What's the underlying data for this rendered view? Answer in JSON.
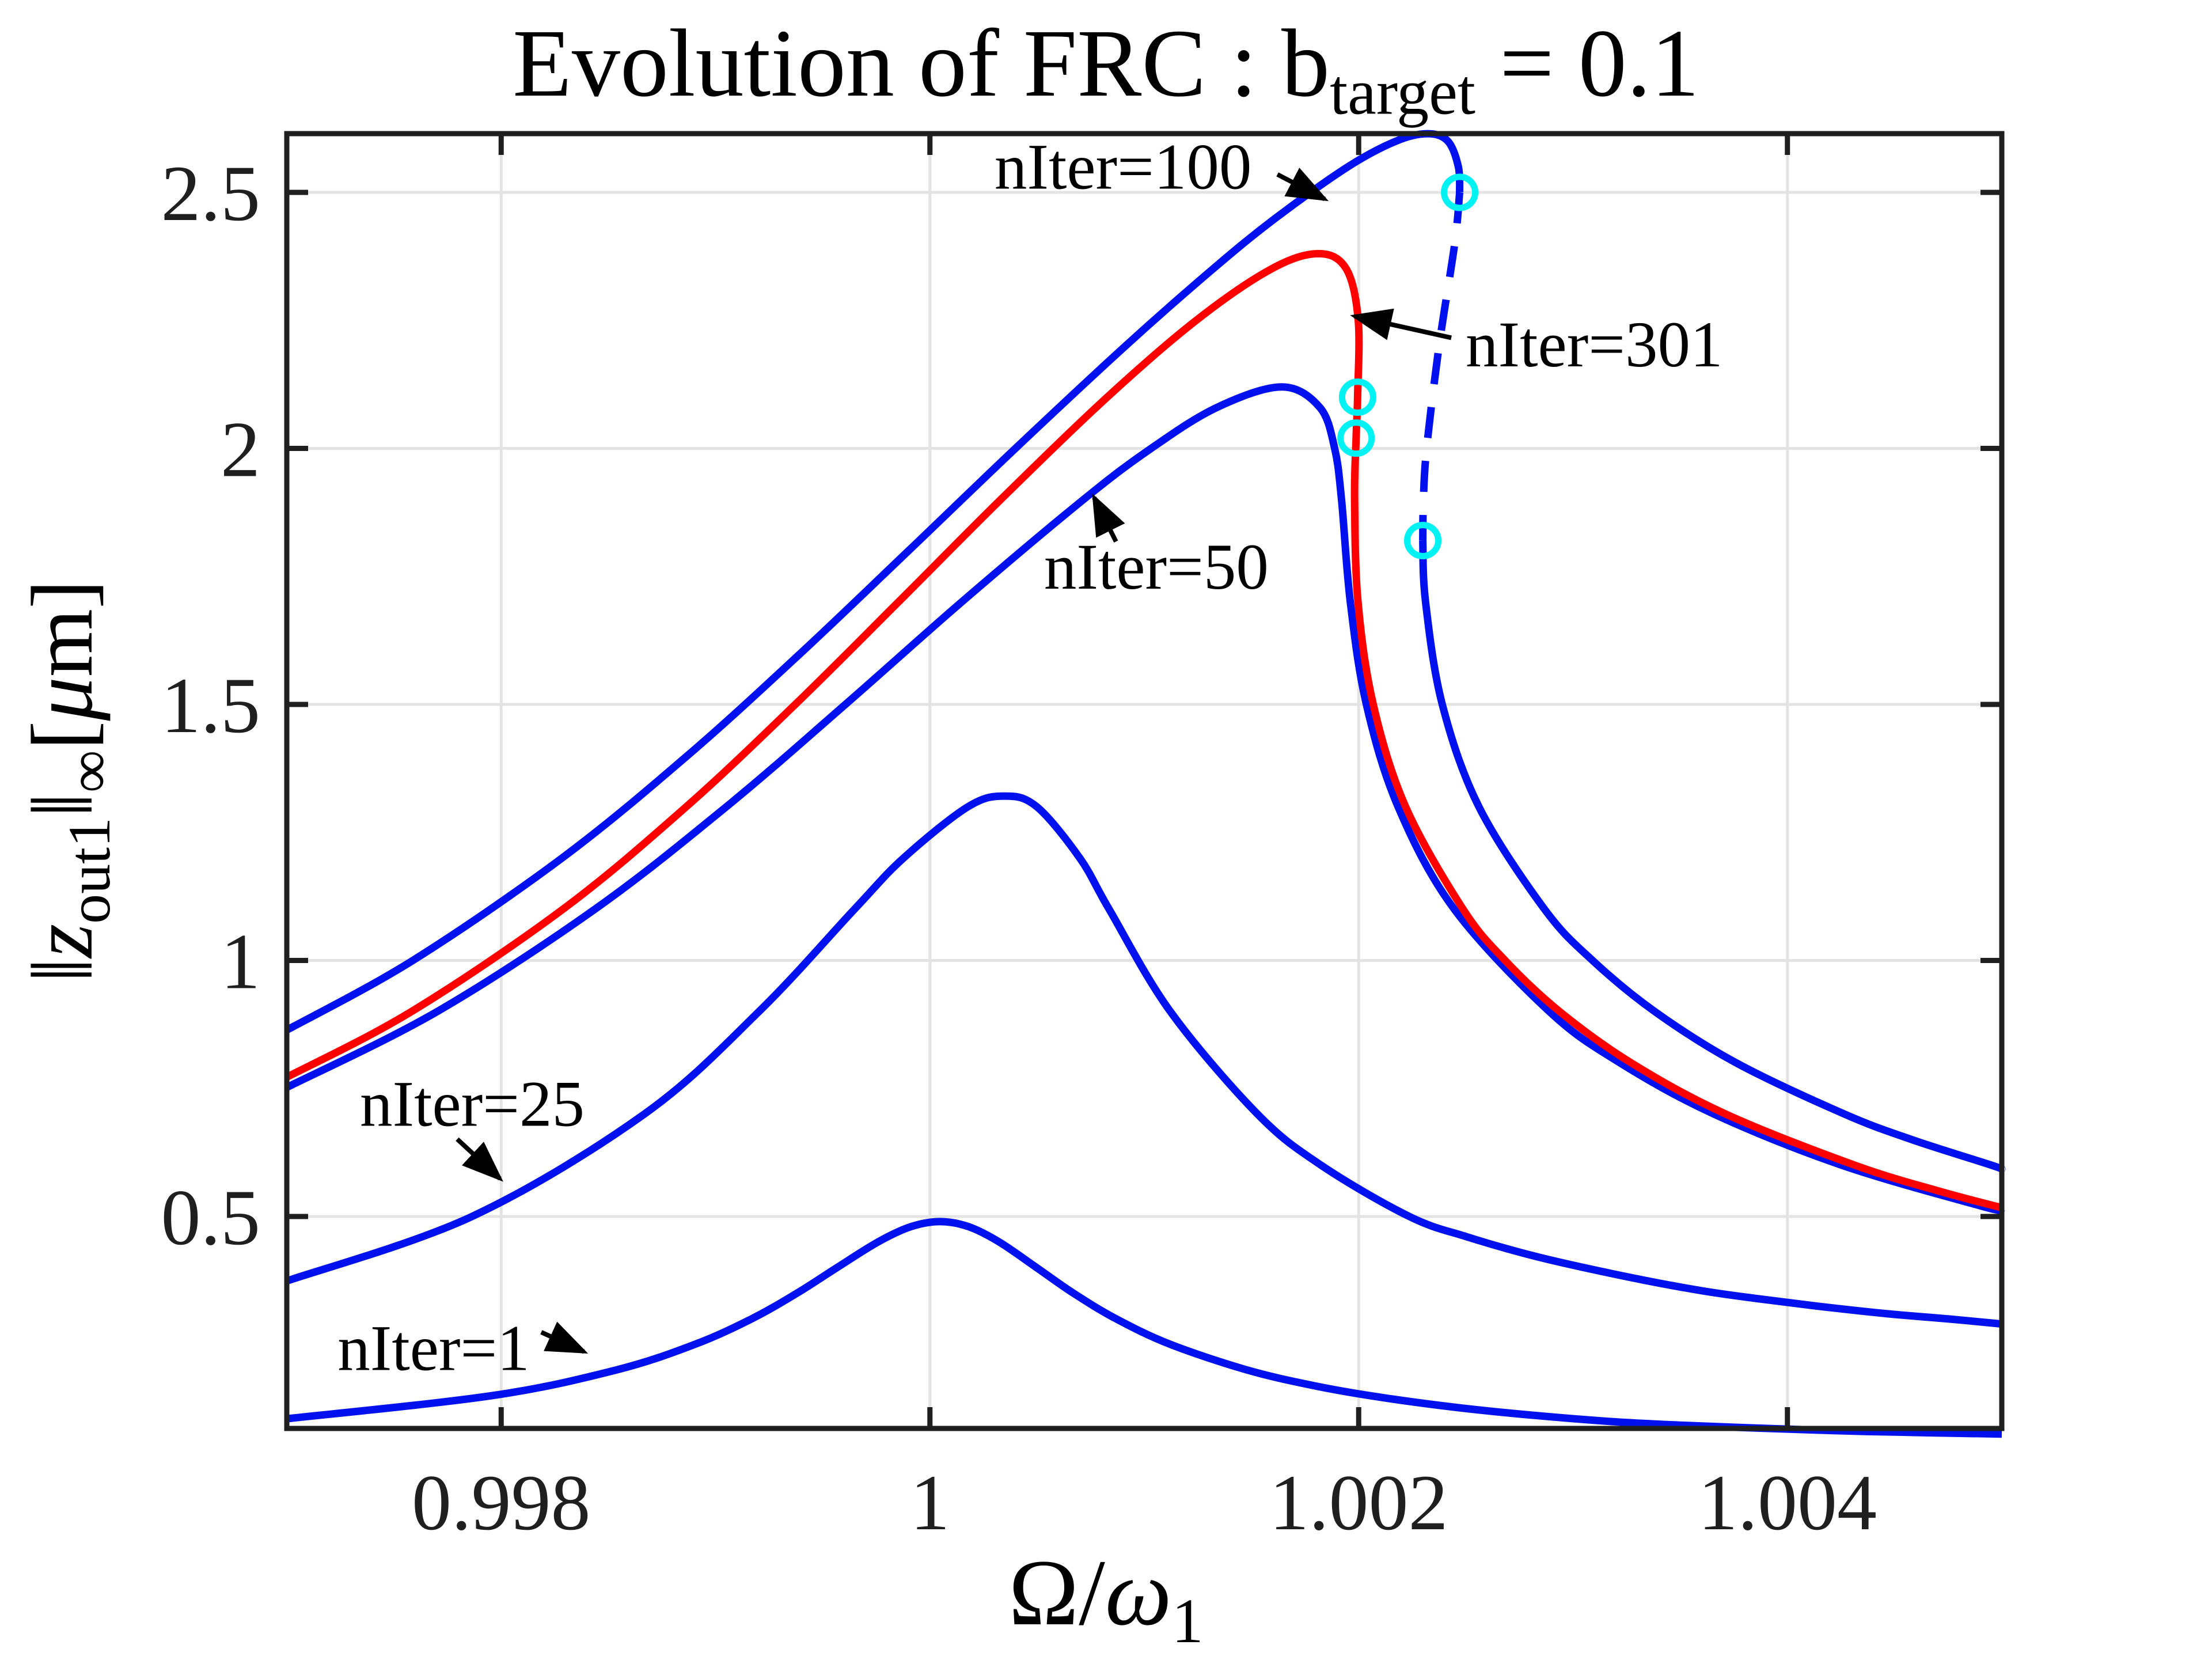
{
  "title": {
    "prefix": "Evolution of FRC : b",
    "sub": "target",
    "suffix": " = 0.1"
  },
  "axis_labels": {
    "x_p1": "Ω/",
    "x_p2": "ω",
    "x_sub": "1",
    "y_p1": "‖",
    "y_z": "z",
    "y_sub1": "out1",
    "y_p2": "‖",
    "y_sub2": "∞",
    "y_p3": "[",
    "y_mu": "μ",
    "y_p4": "m]"
  },
  "colors": {
    "blue": "#0010ee",
    "red": "#ff0000",
    "cyan": "#00f2f2",
    "grid": "#e3e3e3",
    "axis": "#1f1f1f",
    "text": "#000000"
  },
  "chart_data": {
    "type": "line",
    "title": "Evolution of FRC : b_target = 0.1",
    "xlabel": "Omega/omega_1",
    "ylabel": "||z_out1||_inf [um]",
    "xlim": [
      0.997,
      1.005
    ],
    "ylim": [
      0.086,
      2.6147
    ],
    "xticks": [
      0.998,
      1.0,
      1.002,
      1.004
    ],
    "xtick_labels": [
      "0.998",
      "1",
      "1.002",
      "1.004"
    ],
    "yticks": [
      0.5,
      1.0,
      1.5,
      2.0,
      2.5
    ],
    "ytick_labels": [
      "0.5",
      "1",
      "1.5",
      "2",
      "2.5"
    ],
    "grid": true,
    "legend": "none",
    "series": [
      {
        "name": "nIter=1",
        "color": "blue",
        "style": "solid",
        "points": [
          [
            0.997,
            0.105
          ],
          [
            0.997956,
            0.15
          ],
          [
            0.998535,
            0.2
          ],
          [
            0.998902,
            0.25
          ],
          [
            0.999168,
            0.3
          ],
          [
            0.999379,
            0.35
          ],
          [
            0.999566,
            0.4
          ],
          [
            0.999757,
            0.45
          ],
          [
            0.999911,
            0.48
          ],
          [
            1.000048,
            0.49
          ],
          [
            1.000181,
            0.48
          ],
          [
            1.000324,
            0.45
          ],
          [
            1.000498,
            0.4
          ],
          [
            1.00067,
            0.35
          ],
          [
            1.000869,
            0.3
          ],
          [
            1.001123,
            0.25
          ],
          [
            1.001481,
            0.2
          ],
          [
            1.001786,
            0.17
          ],
          [
            1.002053,
            0.15
          ],
          [
            1.002397,
            0.13
          ],
          [
            1.00273,
            0.115
          ],
          [
            1.003161,
            0.1
          ],
          [
            1.003526,
            0.092
          ],
          [
            1.003981,
            0.085
          ],
          [
            1.004372,
            0.08
          ],
          [
            1.005,
            0.075
          ]
        ]
      },
      {
        "name": "nIter=25",
        "color": "blue",
        "style": "solid",
        "points": [
          [
            0.997,
            0.374
          ],
          [
            0.997864,
            0.5
          ],
          [
            0.998668,
            0.7
          ],
          [
            0.999202,
            0.9
          ],
          [
            0.999648,
            1.1
          ],
          [
            0.999877,
            1.2
          ],
          [
            1.000177,
            1.3
          ],
          [
            1.000349,
            1.321
          ],
          [
            1.000499,
            1.3
          ],
          [
            1.000699,
            1.2
          ],
          [
            1.000836,
            1.1
          ],
          [
            1.001122,
            0.9
          ],
          [
            1.001528,
            0.7
          ],
          [
            1.001825,
            0.6
          ],
          [
            1.002236,
            0.5
          ],
          [
            1.002507,
            0.46
          ],
          [
            1.002845,
            0.42
          ],
          [
            1.003278,
            0.38
          ],
          [
            1.0036,
            0.355
          ],
          [
            1.003851,
            0.34
          ],
          [
            1.004137,
            0.325
          ],
          [
            1.004466,
            0.31
          ],
          [
            1.004748,
            0.3
          ],
          [
            1.005,
            0.29
          ]
        ]
      },
      {
        "name": "nIter=50",
        "color": "blue",
        "style": "solid",
        "points": [
          [
            0.997,
            0.752
          ],
          [
            0.997701,
            0.9
          ],
          [
            0.998437,
            1.1
          ],
          [
            0.99905,
            1.3
          ],
          [
            0.999606,
            1.5
          ],
          [
            1.000148,
            1.7
          ],
          [
            1.000716,
            1.9
          ],
          [
            1.001032,
            2.0
          ],
          [
            1.001339,
            2.08
          ],
          [
            1.001641,
            2.12
          ],
          [
            1.001819,
            2.08
          ],
          [
            1.001888,
            2.0
          ],
          [
            1.00192,
            1.9
          ],
          [
            1.001961,
            1.7
          ],
          [
            1.002036,
            1.5
          ],
          [
            1.002184,
            1.3
          ],
          [
            1.002446,
            1.1
          ],
          [
            1.00289,
            0.9
          ],
          [
            1.003219,
            0.8
          ],
          [
            1.003657,
            0.7
          ],
          [
            1.004254,
            0.6
          ],
          [
            1.004907,
            0.52
          ],
          [
            1.005,
            0.514
          ]
        ]
      },
      {
        "name": "nIter=100",
        "color": "blue",
        "style": "solid",
        "points": [
          [
            0.997,
            0.864
          ],
          [
            0.997588,
            1.0
          ],
          [
            0.998284,
            1.2
          ],
          [
            0.998869,
            1.4
          ],
          [
            0.999397,
            1.6
          ],
          [
            0.9999,
            1.8
          ],
          [
            1.000399,
            2.0
          ],
          [
            1.000912,
            2.2
          ],
          [
            1.001319,
            2.35
          ],
          [
            1.001613,
            2.45
          ],
          [
            1.00195,
            2.55
          ],
          [
            1.002174,
            2.6
          ],
          [
            1.002321,
            2.6145
          ],
          [
            1.002416,
            2.6
          ],
          [
            1.002465,
            2.55
          ],
          [
            1.002471,
            2.5
          ]
        ]
      },
      {
        "name": "nIter=100-unstable",
        "color": "blue",
        "style": "dashed",
        "points": [
          [
            1.002471,
            2.5
          ],
          [
            1.002448,
            2.4
          ],
          [
            1.002375,
            2.2
          ],
          [
            1.002317,
            2.0
          ],
          [
            1.002302,
            1.9
          ],
          [
            1.002299,
            1.82
          ]
        ]
      },
      {
        "name": "nIter=100-lower",
        "color": "blue",
        "style": "solid",
        "points": [
          [
            1.002299,
            1.82
          ],
          [
            1.002312,
            1.7
          ],
          [
            1.00239,
            1.5
          ],
          [
            1.002561,
            1.3
          ],
          [
            1.002867,
            1.1
          ],
          [
            1.003091,
            1.0
          ],
          [
            1.003382,
            0.9
          ],
          [
            1.003761,
            0.8
          ],
          [
            1.004266,
            0.7
          ],
          [
            1.004581,
            0.65
          ],
          [
            1.004953,
            0.6
          ],
          [
            1.005,
            0.592
          ]
        ]
      },
      {
        "name": "nIter=301",
        "color": "red",
        "style": "solid",
        "points": [
          [
            0.997,
            0.772
          ],
          [
            0.997581,
            0.9
          ],
          [
            0.998288,
            1.1
          ],
          [
            0.998863,
            1.3
          ],
          [
            0.999372,
            1.5
          ],
          [
            0.999853,
            1.7
          ],
          [
            1.00033,
            1.9
          ],
          [
            1.000827,
            2.1
          ],
          [
            1.001242,
            2.25
          ],
          [
            1.001591,
            2.35
          ],
          [
            1.001813,
            2.3803
          ],
          [
            1.001943,
            2.35
          ],
          [
            1.001998,
            2.25
          ],
          [
            1.001995,
            2.1
          ],
          [
            1.001988,
            2.02
          ],
          [
            1.001981,
            1.9
          ],
          [
            1.001997,
            1.7
          ],
          [
            1.002068,
            1.5
          ],
          [
            1.002219,
            1.3
          ],
          [
            1.002487,
            1.1
          ],
          [
            1.002683,
            1.0
          ],
          [
            1.002938,
            0.9
          ],
          [
            1.003271,
            0.8
          ],
          [
            1.003712,
            0.7
          ],
          [
            1.004315,
            0.6
          ],
          [
            1.004703,
            0.55
          ],
          [
            1.005,
            0.517
          ]
        ]
      }
    ],
    "markers": {
      "name": "fold-points",
      "shape": "circle-open",
      "color": "cyan",
      "points": [
        [
          1.002471,
          2.5
        ],
        [
          1.002299,
          1.82
        ],
        [
          1.001995,
          2.1
        ],
        [
          1.001988,
          2.02
        ]
      ]
    },
    "annotations": [
      {
        "text": "nIter=100",
        "x": 1.000901,
        "y": 2.552,
        "anchor": "middle",
        "arrow": {
          "x1": 1.001621,
          "y1": 2.535,
          "x2": 1.001841,
          "y2": 2.487
        }
      },
      {
        "text": "nIter=301",
        "x": 1.002499,
        "y": 2.205,
        "anchor": "start",
        "arrow": {
          "x1": 1.002432,
          "y1": 2.216,
          "x2": 1.001981,
          "y2": 2.258
        }
      },
      {
        "text": "nIter=50",
        "x": 1.001056,
        "y": 1.771,
        "anchor": "middle",
        "arrow": {
          "x1": 1.000868,
          "y1": 1.818,
          "x2": 1.000766,
          "y2": 1.904
        }
      },
      {
        "text": "nIter=25",
        "x": 0.997865,
        "y": 0.722,
        "anchor": "middle",
        "arrow": {
          "x1": 0.997795,
          "y1": 0.651,
          "x2": 0.997994,
          "y2": 0.574
        }
      },
      {
        "text": "nIter=1",
        "x": 0.997685,
        "y": 0.245,
        "anchor": "middle",
        "arrow": {
          "x1": 0.998187,
          "y1": 0.274,
          "x2": 0.998386,
          "y2": 0.236
        }
      }
    ]
  }
}
